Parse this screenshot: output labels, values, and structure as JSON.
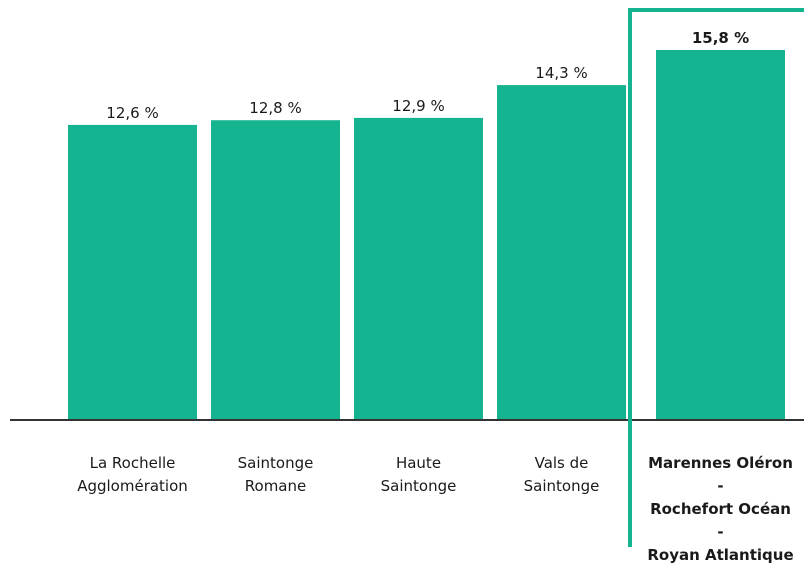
{
  "chart_data": {
    "type": "bar",
    "categories": [
      "La Rochelle\nAgglomération",
      "Saintonge\nRomane",
      "Haute\nSaintonge",
      "Vals de\nSaintonge",
      "Marennes Oléron -\nRochefort Océan -\nRoyan Atlantique"
    ],
    "values": [
      12.6,
      12.8,
      12.9,
      14.3,
      15.8
    ],
    "value_labels": [
      "12,6 %",
      "12,8 %",
      "12,9 %",
      "14,3 %",
      "15,8 %"
    ],
    "color": "#13b48f",
    "highlight": 4
  }
}
